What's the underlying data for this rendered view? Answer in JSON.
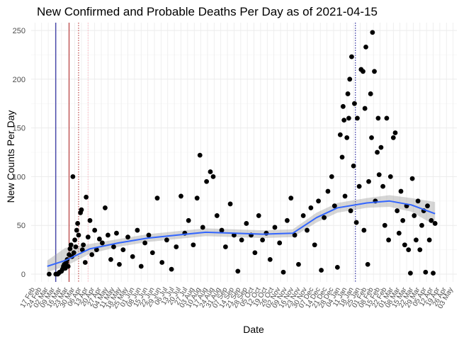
{
  "chart_data": {
    "type": "scatter",
    "title": "New Confirmed and Probable Deaths Per Day as of 2021-04-15",
    "xlabel": "Date",
    "ylabel": "New Counts Per Day",
    "x_range": [
      "2020-02-13",
      "2021-05-07"
    ],
    "ylim": [
      -8,
      258
    ],
    "y_ticks": [
      0,
      50,
      100,
      150,
      200,
      250
    ],
    "x_tick_labels": [
      "17 Feb",
      "24 Feb",
      "02 Mar",
      "09 Mar",
      "16 Mar",
      "23 Mar",
      "30 Mar",
      "06 Apr",
      "13 Apr",
      "20 Apr",
      "27 Apr",
      "04 May",
      "11 May",
      "18 May",
      "25 May",
      "01 Jun",
      "08 Jun",
      "15 Jun",
      "22 Jun",
      "29 Jun",
      "06 Jul",
      "13 Jul",
      "20 Jul",
      "27 Jul",
      "03 Aug",
      "10 Aug",
      "17 Aug",
      "24 Aug",
      "31 Aug",
      "07 Sep",
      "14 Sep",
      "21 Sep",
      "28 Sep",
      "05 Oct",
      "12 Oct",
      "19 Oct",
      "26 Oct",
      "02 Nov",
      "09 Nov",
      "16 Nov",
      "23 Nov",
      "30 Nov",
      "07 Dec",
      "14 Dec",
      "21 Dec",
      "28 Dec",
      "04 Jan",
      "11 Jan",
      "18 Jan",
      "25 Jan",
      "01 Feb",
      "08 Feb",
      "15 Feb",
      "22 Feb",
      "01 Mar",
      "08 Mar",
      "15 Mar",
      "22 Mar",
      "29 Mar",
      "05 Apr",
      "12 Apr",
      "19 Apr",
      "26 Apr",
      "03 May"
    ],
    "x_tick_start": "2020-02-17",
    "x_tick_interval_days": 7,
    "reference_lines": [
      {
        "date": "2020-03-10",
        "color": "#00008b",
        "style": "solid"
      },
      {
        "date": "2020-03-24",
        "color": "#b22222",
        "style": "solid"
      },
      {
        "date": "2020-04-03",
        "color": "#b22222",
        "style": "dotted"
      },
      {
        "date": "2020-04-13",
        "color": "#ffb6c1",
        "style": "dotted"
      },
      {
        "date": "2021-01-20",
        "color": "#00008b",
        "style": "dotted"
      }
    ],
    "points": [
      {
        "x": "2020-03-03",
        "y": 0
      },
      {
        "x": "2020-03-10",
        "y": 0
      },
      {
        "x": "2020-03-12",
        "y": 0
      },
      {
        "x": "2020-03-13",
        "y": 1
      },
      {
        "x": "2020-03-14",
        "y": 2
      },
      {
        "x": "2020-03-16",
        "y": 3
      },
      {
        "x": "2020-03-17",
        "y": 5
      },
      {
        "x": "2020-03-18",
        "y": 8
      },
      {
        "x": "2020-03-19",
        "y": 10
      },
      {
        "x": "2020-03-20",
        "y": 6
      },
      {
        "x": "2020-03-21",
        "y": 12
      },
      {
        "x": "2020-03-22",
        "y": 15
      },
      {
        "x": "2020-03-23",
        "y": 8
      },
      {
        "x": "2020-03-24",
        "y": 20
      },
      {
        "x": "2020-03-25",
        "y": 26
      },
      {
        "x": "2020-03-26",
        "y": 30
      },
      {
        "x": "2020-03-27",
        "y": 18
      },
      {
        "x": "2020-03-28",
        "y": 100
      },
      {
        "x": "2020-03-29",
        "y": 22
      },
      {
        "x": "2020-03-30",
        "y": 35
      },
      {
        "x": "2020-03-31",
        "y": 28
      },
      {
        "x": "2020-04-01",
        "y": 45
      },
      {
        "x": "2020-04-02",
        "y": 52
      },
      {
        "x": "2020-04-03",
        "y": 40
      },
      {
        "x": "2020-04-05",
        "y": 63
      },
      {
        "x": "2020-04-06",
        "y": 66
      },
      {
        "x": "2020-04-07",
        "y": 25
      },
      {
        "x": "2020-04-08",
        "y": 30
      },
      {
        "x": "2020-04-10",
        "y": 12
      },
      {
        "x": "2020-04-11",
        "y": 79
      },
      {
        "x": "2020-04-13",
        "y": 38
      },
      {
        "x": "2020-04-15",
        "y": 55
      },
      {
        "x": "2020-04-17",
        "y": 20
      },
      {
        "x": "2020-04-20",
        "y": 45
      },
      {
        "x": "2020-04-22",
        "y": 25
      },
      {
        "x": "2020-04-25",
        "y": 36
      },
      {
        "x": "2020-04-28",
        "y": 32
      },
      {
        "x": "2020-05-01",
        "y": 68
      },
      {
        "x": "2020-05-04",
        "y": 40
      },
      {
        "x": "2020-05-07",
        "y": 15
      },
      {
        "x": "2020-05-10",
        "y": 28
      },
      {
        "x": "2020-05-13",
        "y": 42
      },
      {
        "x": "2020-05-16",
        "y": 10
      },
      {
        "x": "2020-05-20",
        "y": 25
      },
      {
        "x": "2020-05-25",
        "y": 38
      },
      {
        "x": "2020-05-30",
        "y": 18
      },
      {
        "x": "2020-06-04",
        "y": 45
      },
      {
        "x": "2020-06-08",
        "y": 8
      },
      {
        "x": "2020-06-12",
        "y": 32
      },
      {
        "x": "2020-06-16",
        "y": 40
      },
      {
        "x": "2020-06-20",
        "y": 22
      },
      {
        "x": "2020-06-25",
        "y": 78
      },
      {
        "x": "2020-06-30",
        "y": 12
      },
      {
        "x": "2020-07-05",
        "y": 35
      },
      {
        "x": "2020-07-10",
        "y": 5
      },
      {
        "x": "2020-07-15",
        "y": 28
      },
      {
        "x": "2020-07-20",
        "y": 80
      },
      {
        "x": "2020-07-24",
        "y": 42
      },
      {
        "x": "2020-07-28",
        "y": 55
      },
      {
        "x": "2020-08-02",
        "y": 30
      },
      {
        "x": "2020-08-06",
        "y": 78
      },
      {
        "x": "2020-08-09",
        "y": 122
      },
      {
        "x": "2020-08-12",
        "y": 48
      },
      {
        "x": "2020-08-16",
        "y": 95
      },
      {
        "x": "2020-08-20",
        "y": 105
      },
      {
        "x": "2020-08-23",
        "y": 100
      },
      {
        "x": "2020-08-27",
        "y": 60
      },
      {
        "x": "2020-09-01",
        "y": 45
      },
      {
        "x": "2020-09-05",
        "y": 28
      },
      {
        "x": "2020-09-10",
        "y": 72
      },
      {
        "x": "2020-09-14",
        "y": 40
      },
      {
        "x": "2020-09-18",
        "y": 3
      },
      {
        "x": "2020-09-22",
        "y": 35
      },
      {
        "x": "2020-09-27",
        "y": 52
      },
      {
        "x": "2020-10-02",
        "y": 40
      },
      {
        "x": "2020-10-06",
        "y": 22
      },
      {
        "x": "2020-10-10",
        "y": 60
      },
      {
        "x": "2020-10-14",
        "y": 35
      },
      {
        "x": "2020-10-18",
        "y": 42
      },
      {
        "x": "2020-10-22",
        "y": 15
      },
      {
        "x": "2020-10-27",
        "y": 48
      },
      {
        "x": "2020-11-01",
        "y": 32
      },
      {
        "x": "2020-11-05",
        "y": 2
      },
      {
        "x": "2020-11-09",
        "y": 55
      },
      {
        "x": "2020-11-13",
        "y": 78
      },
      {
        "x": "2020-11-17",
        "y": 40
      },
      {
        "x": "2020-11-21",
        "y": 10
      },
      {
        "x": "2020-11-26",
        "y": 60
      },
      {
        "x": "2020-11-30",
        "y": 45
      },
      {
        "x": "2020-12-04",
        "y": 68
      },
      {
        "x": "2020-12-08",
        "y": 30
      },
      {
        "x": "2020-12-12",
        "y": 75
      },
      {
        "x": "2020-12-15",
        "y": 4
      },
      {
        "x": "2020-12-18",
        "y": 58
      },
      {
        "x": "2020-12-22",
        "y": 85
      },
      {
        "x": "2020-12-26",
        "y": 100
      },
      {
        "x": "2020-12-29",
        "y": 70
      },
      {
        "x": "2021-01-01",
        "y": 7
      },
      {
        "x": "2021-01-04",
        "y": 143
      },
      {
        "x": "2021-01-06",
        "y": 120
      },
      {
        "x": "2021-01-07",
        "y": 172
      },
      {
        "x": "2021-01-08",
        "y": 158
      },
      {
        "x": "2021-01-09",
        "y": 80
      },
      {
        "x": "2021-01-11",
        "y": 140
      },
      {
        "x": "2021-01-12",
        "y": 185
      },
      {
        "x": "2021-01-13",
        "y": 160
      },
      {
        "x": "2021-01-14",
        "y": 200
      },
      {
        "x": "2021-01-15",
        "y": 65
      },
      {
        "x": "2021-01-16",
        "y": 223
      },
      {
        "x": "2021-01-18",
        "y": 111
      },
      {
        "x": "2021-01-19",
        "y": 175
      },
      {
        "x": "2021-01-21",
        "y": 53
      },
      {
        "x": "2021-01-22",
        "y": 160
      },
      {
        "x": "2021-01-24",
        "y": 90
      },
      {
        "x": "2021-01-26",
        "y": 210
      },
      {
        "x": "2021-01-28",
        "y": 208
      },
      {
        "x": "2021-01-29",
        "y": 45
      },
      {
        "x": "2021-01-30",
        "y": 170
      },
      {
        "x": "2021-01-31",
        "y": 233
      },
      {
        "x": "2021-02-02",
        "y": 10
      },
      {
        "x": "2021-02-03",
        "y": 95
      },
      {
        "x": "2021-02-05",
        "y": 185
      },
      {
        "x": "2021-02-06",
        "y": 140
      },
      {
        "x": "2021-02-07",
        "y": 248
      },
      {
        "x": "2021-02-09",
        "y": 208
      },
      {
        "x": "2021-02-10",
        "y": 75
      },
      {
        "x": "2021-02-12",
        "y": 125
      },
      {
        "x": "2021-02-13",
        "y": 160
      },
      {
        "x": "2021-02-14",
        "y": 102
      },
      {
        "x": "2021-02-16",
        "y": 130
      },
      {
        "x": "2021-02-18",
        "y": 90
      },
      {
        "x": "2021-02-20",
        "y": 50
      },
      {
        "x": "2021-02-22",
        "y": 160
      },
      {
        "x": "2021-02-24",
        "y": 35
      },
      {
        "x": "2021-02-26",
        "y": 100
      },
      {
        "x": "2021-03-01",
        "y": 140
      },
      {
        "x": "2021-03-03",
        "y": 145
      },
      {
        "x": "2021-03-05",
        "y": 65
      },
      {
        "x": "2021-03-07",
        "y": 42
      },
      {
        "x": "2021-03-09",
        "y": 85
      },
      {
        "x": "2021-03-11",
        "y": 55
      },
      {
        "x": "2021-03-13",
        "y": 30
      },
      {
        "x": "2021-03-15",
        "y": 70
      },
      {
        "x": "2021-03-17",
        "y": 25
      },
      {
        "x": "2021-03-19",
        "y": 1
      },
      {
        "x": "2021-03-21",
        "y": 98
      },
      {
        "x": "2021-03-23",
        "y": 60
      },
      {
        "x": "2021-03-25",
        "y": 35
      },
      {
        "x": "2021-03-27",
        "y": 75
      },
      {
        "x": "2021-03-29",
        "y": 25
      },
      {
        "x": "2021-03-31",
        "y": 50
      },
      {
        "x": "2021-04-02",
        "y": 65
      },
      {
        "x": "2021-04-04",
        "y": 2
      },
      {
        "x": "2021-04-06",
        "y": 70
      },
      {
        "x": "2021-04-08",
        "y": 35
      },
      {
        "x": "2021-04-10",
        "y": 55
      },
      {
        "x": "2021-04-12",
        "y": 1
      },
      {
        "x": "2021-04-14",
        "y": 52
      }
    ],
    "smooth_trend": {
      "color": "#3366ff",
      "band_color": "#999999",
      "points": [
        {
          "x": "2020-03-01",
          "y": 8,
          "lo": 2,
          "hi": 14
        },
        {
          "x": "2020-03-20",
          "y": 14,
          "lo": 8,
          "hi": 27
        },
        {
          "x": "2020-04-15",
          "y": 26,
          "lo": 21,
          "hi": 31
        },
        {
          "x": "2020-05-15",
          "y": 32,
          "lo": 28,
          "hi": 36
        },
        {
          "x": "2020-06-15",
          "y": 37,
          "lo": 33,
          "hi": 41
        },
        {
          "x": "2020-07-15",
          "y": 40,
          "lo": 36,
          "hi": 44
        },
        {
          "x": "2020-08-15",
          "y": 43,
          "lo": 39,
          "hi": 47
        },
        {
          "x": "2020-09-15",
          "y": 42,
          "lo": 38,
          "hi": 46
        },
        {
          "x": "2020-10-15",
          "y": 41,
          "lo": 37,
          "hi": 45
        },
        {
          "x": "2020-11-15",
          "y": 42,
          "lo": 38,
          "hi": 46
        },
        {
          "x": "2020-12-10",
          "y": 58,
          "lo": 53,
          "hi": 63
        },
        {
          "x": "2021-01-01",
          "y": 68,
          "lo": 63,
          "hi": 73
        },
        {
          "x": "2021-02-01",
          "y": 73,
          "lo": 68,
          "hi": 78
        },
        {
          "x": "2021-02-25",
          "y": 75,
          "lo": 69,
          "hi": 81
        },
        {
          "x": "2021-03-20",
          "y": 71,
          "lo": 64,
          "hi": 78
        },
        {
          "x": "2021-04-14",
          "y": 62,
          "lo": 50,
          "hi": 74
        }
      ]
    }
  }
}
